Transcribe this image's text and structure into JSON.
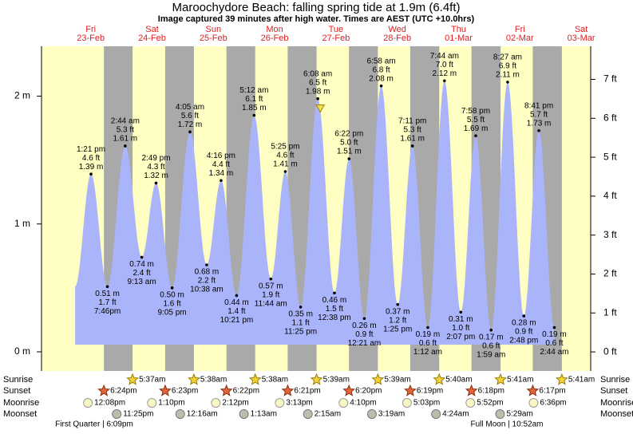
{
  "title": "Maroochydore Beach: falling  spring tide at 1.9m (6.4ft)",
  "subtitle": "Image captured 39 minutes after high water. Times are AEST (UTC +10.0hrs)",
  "day_names": [
    "Fri",
    "Sat",
    "Sun",
    "Mon",
    "Tue",
    "Wed",
    "Thu",
    "Fri",
    "Sat"
  ],
  "day_dates": [
    "23-Feb",
    "24-Feb",
    "25-Feb",
    "26-Feb",
    "27-Feb",
    "28-Feb",
    "01-Mar",
    "02-Mar",
    "03-Mar"
  ],
  "chart_data": {
    "type": "area",
    "times": [
      "1:21 pm",
      "7:46pm",
      "2:44 am",
      "9:13 am",
      "2:49 pm",
      "9:05 pm",
      "4:05 am",
      "10:38 am",
      "4:16 pm",
      "10:21 pm",
      "5:12 am",
      "11:44 am",
      "5:25 pm",
      "11:25 pm",
      "6:08 am",
      "12:38 pm",
      "6:22 pm",
      "12:21 am",
      "6:58 am",
      "1:25 pm",
      "7:11 pm",
      "1:12 am",
      "7:44 am",
      "2:07 pm",
      "7:58 pm",
      "1:59 am",
      "8:27 am",
      "2:48 pm",
      "8:41 pm",
      "2:44 am"
    ],
    "values": [
      1.39,
      0.51,
      1.61,
      0.74,
      1.32,
      0.5,
      1.72,
      0.68,
      1.34,
      0.44,
      1.85,
      0.57,
      1.41,
      0.35,
      1.98,
      0.46,
      1.51,
      0.26,
      2.08,
      0.37,
      1.61,
      0.19,
      2.12,
      0.31,
      1.69,
      0.17,
      2.11,
      0.28,
      1.73,
      0.19
    ],
    "value_labels": [
      "1.39 m",
      "0.51 m",
      "1.61 m",
      "0.74 m",
      "1.32 m",
      "0.50 m",
      "1.72 m",
      "0.68 m",
      "1.34 m",
      "0.44 m",
      "1.85 m",
      "0.57 m",
      "1.41 m",
      "0.35 m",
      "1.98 m",
      "0.46 m",
      "1.51 m",
      "0.26 m",
      "2.08 m",
      "0.37 m",
      "1.61 m",
      "0.19 m",
      "2.12 m",
      "0.31 m",
      "1.69 m",
      "0.17 m",
      "2.11 m",
      "0.28 m",
      "1.73 m",
      "0.19 m"
    ],
    "ft_values": [
      4.6,
      1.7,
      5.3,
      2.4,
      4.3,
      1.6,
      5.6,
      2.2,
      4.4,
      1.4,
      6.1,
      1.9,
      4.6,
      1.1,
      6.5,
      1.5,
      5.0,
      0.9,
      6.8,
      1.2,
      5.3,
      0.6,
      7.0,
      1.0,
      5.5,
      0.6,
      6.9,
      0.9,
      5.7,
      0.6
    ],
    "ft_labels": [
      "4.6 ft",
      "1.7 ft",
      "5.3 ft",
      "2.4 ft",
      "4.3 ft",
      "1.6 ft",
      "5.6 ft",
      "2.2 ft",
      "4.4 ft",
      "1.4 ft",
      "6.1 ft",
      "1.9 ft",
      "4.6 ft",
      "1.1 ft",
      "6.5 ft",
      "1.5 ft",
      "5.0 ft",
      "0.9 ft",
      "6.8 ft",
      "1.2 ft",
      "5.3 ft",
      "0.6 ft",
      "7.0 ft",
      "1.0 ft",
      "5.5 ft",
      "0.6 ft",
      "6.9 ft",
      "0.9 ft",
      "5.7 ft",
      "0.6 ft"
    ],
    "ylim": [
      -0.15,
      2.39
    ],
    "yticks": [
      {
        "value": 0,
        "label": "0 m"
      },
      {
        "value": 1,
        "label": "1 m"
      },
      {
        "value": 2,
        "label": "2 m"
      }
    ],
    "y2lim": [
      -0.49,
      7.85
    ],
    "y2ticks": [
      {
        "value": 0,
        "label": "0 ft"
      },
      {
        "value": 1,
        "label": "1 ft"
      },
      {
        "value": 2,
        "label": "2 ft"
      },
      {
        "value": 3,
        "label": "3 ft"
      },
      {
        "value": 4,
        "label": "4 ft"
      },
      {
        "value": 5,
        "label": "5 ft"
      },
      {
        "value": 6,
        "label": "6 ft"
      },
      {
        "value": 7,
        "label": "7 ft"
      }
    ],
    "color": "#aab4fa",
    "current_height": 1.9
  },
  "astronomy": [
    {
      "name": "Sunrise",
      "times": [
        "5:37am",
        "5:38am",
        "5:38am",
        "5:39am",
        "5:39am",
        "5:40am",
        "5:41am",
        "5:41am"
      ]
    },
    {
      "name": "Sunset",
      "times": [
        "6:24pm",
        "6:23pm",
        "6:22pm",
        "6:21pm",
        "6:20pm",
        "6:19pm",
        "6:18pm",
        "6:17pm"
      ]
    },
    {
      "name": "Moonrise",
      "times": [
        "12:08pm",
        "1:10pm",
        "2:12pm",
        "3:13pm",
        "4:10pm",
        "5:03pm",
        "5:52pm",
        "6:36pm"
      ]
    },
    {
      "name": "Moonset",
      "times": [
        "11:25pm",
        "12:16am",
        "1:13am",
        "2:15am",
        "3:19am",
        "4:24am",
        "5:29am"
      ]
    }
  ],
  "moon_phases": [
    "First Quarter | 6:09pm",
    "Full Moon | 10:52am"
  ]
}
